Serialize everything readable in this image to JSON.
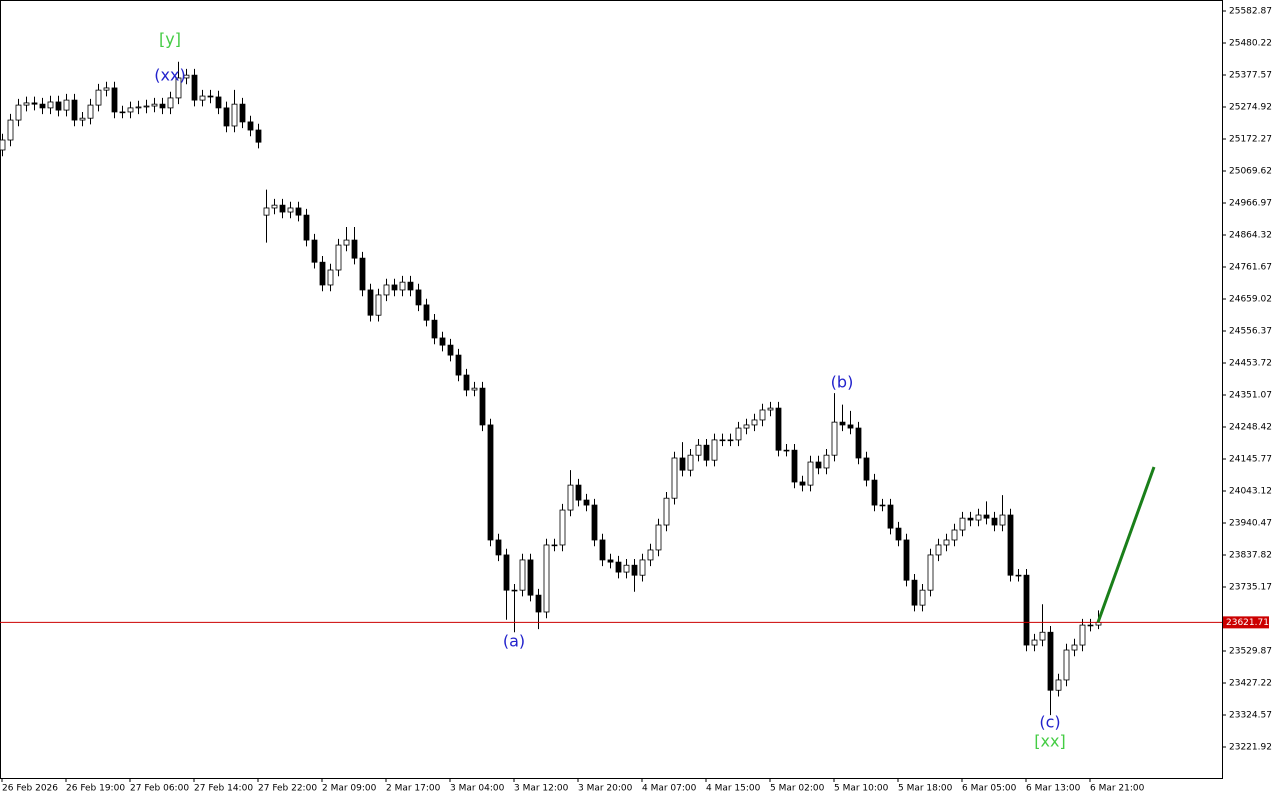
{
  "chart_data": {
    "type": "candlestick",
    "categories": [
      "26 Feb 2026",
      null,
      null,
      null,
      null,
      null,
      null,
      null,
      "26 Feb 19:00",
      null,
      null,
      null,
      null,
      null,
      null,
      null,
      "27 Feb 06:00",
      null,
      null,
      null,
      null,
      null,
      null,
      null,
      "27 Feb 14:00",
      null,
      null,
      null,
      null,
      null,
      null,
      null,
      "27 Feb 22:00",
      null,
      null,
      null,
      null,
      null,
      null,
      null,
      "2 Mar 09:00",
      null,
      null,
      null,
      null,
      null,
      null,
      null,
      "2 Mar 17:00",
      null,
      null,
      null,
      null,
      null,
      null,
      null,
      "3 Mar 04:00",
      null,
      null,
      null,
      null,
      null,
      null,
      null,
      "3 Mar 12:00",
      null,
      null,
      null,
      null,
      null,
      null,
      null,
      "3 Mar 20:00",
      null,
      null,
      null,
      null,
      null,
      null,
      null,
      "4 Mar 07:00",
      null,
      null,
      null,
      null,
      null,
      null,
      null,
      "4 Mar 15:00",
      null,
      null,
      null,
      null,
      null,
      null,
      null,
      "5 Mar 02:00",
      null,
      null,
      null,
      null,
      null,
      null,
      null,
      "5 Mar 10:00",
      null,
      null,
      null,
      null,
      null,
      null,
      null,
      "5 Mar 18:00",
      null,
      null,
      null,
      null,
      null,
      null,
      null,
      "6 Mar 05:00",
      null,
      null,
      null,
      null,
      null,
      null,
      null,
      "6 Mar 13:00",
      null,
      null,
      null,
      null,
      null,
      null,
      null,
      "6 Mar 21:00",
      null
    ],
    "open": [
      25137,
      25169,
      25233,
      25281,
      25288,
      25284,
      25272,
      25291,
      25265,
      25297,
      25233,
      25239,
      25281,
      25329,
      25336,
      25259,
      25259,
      25272,
      25275,
      25278,
      25284,
      25272,
      25304,
      25368,
      25377,
      25297,
      25310,
      25307,
      25272,
      25214,
      25284,
      25227,
      25201,
      24928,
      24951,
      24960,
      24938,
      24951,
      24928,
      24848,
      24777,
      24704,
      24752,
      24832,
      24848,
      24790,
      24688,
      24607,
      24672,
      24704,
      24688,
      24713,
      24688,
      24640,
      24591,
      24534,
      24511,
      24479,
      24415,
      24367,
      24373,
      24255,
      23886,
      23838,
      23725,
      23725,
      23822,
      23709,
      23655,
      23870,
      23870,
      23982,
      24062,
      24014,
      23998,
      23886,
      23822,
      23815,
      23783,
      23805,
      23773,
      23822,
      23854,
      23934,
      24020,
      24149,
      24110,
      24158,
      24190,
      24142,
      24207,
      24207,
      24207,
      24245,
      24255,
      24271,
      24303,
      24309,
      24174,
      24174,
      24072,
      24062,
      24136,
      24117,
      24158,
      24264,
      24255,
      24245,
      24149,
      24078,
      23998,
      23998,
      23924,
      23886,
      23757,
      23677,
      23725,
      23838,
      23870,
      23886,
      23918,
      23956,
      23950,
      23966,
      23956,
      23934,
      23966,
      23773,
      23773,
      23549,
      23565,
      23590,
      23404,
      23437,
      23533,
      23549,
      23613,
      23613
    ],
    "high": [
      25189,
      25253,
      25301,
      25308,
      25308,
      25304,
      25311,
      25311,
      25317,
      25317,
      25259,
      25301,
      25349,
      25356,
      25356,
      25279,
      25292,
      25295,
      25298,
      25304,
      25304,
      25324,
      25420,
      25397,
      25397,
      25330,
      25330,
      25327,
      25292,
      25330,
      25304,
      25247,
      25221,
      25010,
      24980,
      24980,
      24971,
      24971,
      24948,
      24868,
      24797,
      24772,
      24852,
      24890,
      24890,
      24810,
      24708,
      24692,
      24724,
      24724,
      24733,
      24733,
      24708,
      24660,
      24611,
      24554,
      24531,
      24499,
      24435,
      24393,
      24393,
      24275,
      23906,
      23858,
      23745,
      23842,
      23842,
      23729,
      23890,
      23890,
      24002,
      24110,
      24082,
      24034,
      24018,
      23906,
      23842,
      23835,
      23825,
      23825,
      23842,
      23874,
      23954,
      24040,
      24169,
      24200,
      24178,
      24210,
      24210,
      24227,
      24227,
      24227,
      24265,
      24275,
      24291,
      24323,
      24329,
      24329,
      24194,
      24194,
      24092,
      24156,
      24156,
      24178,
      24357,
      24320,
      24300,
      24265,
      24169,
      24098,
      24018,
      24018,
      23944,
      23906,
      23777,
      23745,
      23858,
      23890,
      23906,
      23938,
      23976,
      23976,
      23986,
      24010,
      23976,
      24030,
      23986,
      23793,
      23793,
      23585,
      23680,
      23610,
      23457,
      23553,
      23569,
      23633,
      23633,
      23660
    ],
    "low": [
      25117,
      25149,
      25213,
      25261,
      25264,
      25252,
      25252,
      25245,
      25245,
      25213,
      25213,
      25219,
      25261,
      25309,
      25239,
      25239,
      25239,
      25252,
      25255,
      25258,
      25252,
      25252,
      25284,
      25348,
      25277,
      25277,
      25287,
      25252,
      25194,
      25194,
      25207,
      25181,
      25142,
      24840,
      24931,
      24918,
      24918,
      24908,
      24828,
      24757,
      24684,
      24684,
      24732,
      24812,
      24770,
      24668,
      24587,
      24587,
      24652,
      24668,
      24668,
      24668,
      24620,
      24571,
      24514,
      24491,
      24459,
      24395,
      24347,
      24347,
      24235,
      23866,
      23818,
      23630,
      23590,
      23705,
      23689,
      23600,
      23635,
      23850,
      23850,
      23962,
      23994,
      23978,
      23866,
      23802,
      23795,
      23763,
      23763,
      23720,
      23753,
      23802,
      23834,
      23914,
      24000,
      24090,
      24090,
      24138,
      24122,
      24122,
      24187,
      24187,
      24187,
      24225,
      24235,
      24251,
      24283,
      24154,
      24154,
      24052,
      24042,
      24042,
      24097,
      24097,
      24138,
      24235,
      24225,
      24129,
      24058,
      23978,
      23978,
      23904,
      23866,
      23737,
      23657,
      23657,
      23705,
      23818,
      23850,
      23866,
      23898,
      23930,
      23930,
      23936,
      23914,
      23914,
      23753,
      23753,
      23529,
      23529,
      23545,
      23324,
      23384,
      23417,
      23513,
      23529,
      23593,
      23600
    ],
    "close": [
      25169,
      25233,
      25281,
      25288,
      25284,
      25272,
      25291,
      25265,
      25297,
      25233,
      25239,
      25281,
      25329,
      25336,
      25259,
      25259,
      25272,
      25275,
      25278,
      25284,
      25272,
      25304,
      25368,
      25377,
      25297,
      25310,
      25307,
      25272,
      25214,
      25284,
      25227,
      25201,
      25162,
      24951,
      24960,
      24938,
      24951,
      24928,
      24848,
      24777,
      24704,
      24752,
      24832,
      24848,
      24790,
      24688,
      24607,
      24672,
      24704,
      24688,
      24713,
      24688,
      24640,
      24591,
      24534,
      24511,
      24479,
      24415,
      24367,
      24373,
      24255,
      23886,
      23838,
      23725,
      23725,
      23822,
      23709,
      23655,
      23870,
      23870,
      23982,
      24062,
      24014,
      23998,
      23886,
      23822,
      23815,
      23783,
      23805,
      23773,
      23822,
      23854,
      23934,
      24020,
      24149,
      24110,
      24158,
      24190,
      24142,
      24207,
      24207,
      24207,
      24245,
      24255,
      24271,
      24303,
      24309,
      24174,
      24174,
      24072,
      24062,
      24136,
      24117,
      24158,
      24264,
      24255,
      24245,
      24149,
      24078,
      23998,
      23998,
      23924,
      23886,
      23757,
      23677,
      23725,
      23838,
      23870,
      23886,
      23918,
      23956,
      23950,
      23966,
      23956,
      23934,
      23966,
      23773,
      23773,
      23549,
      23565,
      23590,
      23404,
      23437,
      23533,
      23549,
      23613,
      23613,
      23621.71
    ],
    "up_color": "#ffffff",
    "down_color": "#000000",
    "ylim": [
      23122.5,
      25611.7
    ],
    "yticks": [
      25582.87,
      25480.22,
      25377.57,
      25274.92,
      25172.27,
      25069.62,
      24966.97,
      24864.32,
      24761.67,
      24659.02,
      24556.37,
      24453.72,
      24351.07,
      24248.42,
      24145.77,
      24043.12,
      23940.47,
      23837.82,
      23735.17,
      23529.87,
      23427.22,
      23324.57,
      23221.92
    ],
    "price_line": {
      "value": 23621.71,
      "color": "#cc0000"
    },
    "forecast": {
      "x": [
        137,
        144
      ],
      "values": [
        23621.71,
        24120
      ],
      "color": "#1a7f1a"
    },
    "annotations": [
      {
        "text": "[y]",
        "x": 21,
        "y": 25490,
        "color": "#44cc44"
      },
      {
        "text": "(xx)",
        "x": 21,
        "y": 25374,
        "color": "#2222cc"
      },
      {
        "text": "(a)",
        "x": 64,
        "y": 23558,
        "color": "#2222cc"
      },
      {
        "text": "(b)",
        "x": 105,
        "y": 24389,
        "color": "#2222cc"
      },
      {
        "text": "(c)",
        "x": 131,
        "y": 23299,
        "color": "#2222cc"
      },
      {
        "text": "[xx]",
        "x": 131,
        "y": 23238,
        "color": "#44cc44"
      }
    ]
  }
}
